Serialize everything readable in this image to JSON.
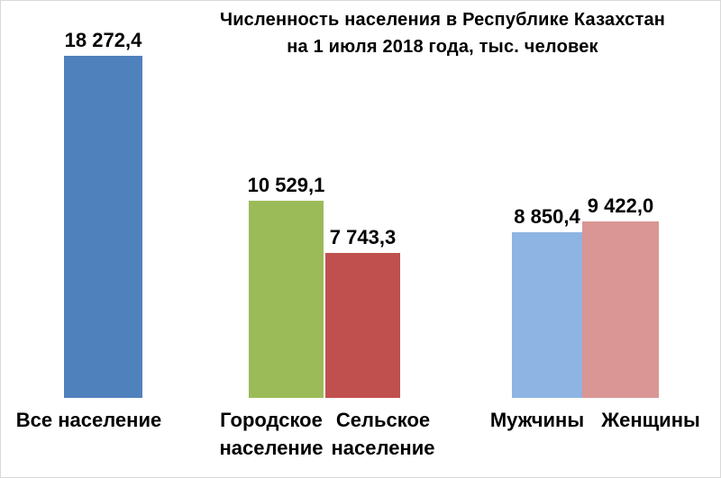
{
  "title": {
    "line1": "Численность населения  в Республике  Казахстан",
    "line2": "на 1 июля 2018 года, тыс. человек"
  },
  "chart_data": {
    "type": "bar",
    "title": "Численность населения в Республике Казахстан на 1 июля 2018 года, тыс. человек",
    "unit": "тыс. человек",
    "xlabel": "",
    "ylabel": "",
    "ylim": [
      0,
      18272.4
    ],
    "grid": false,
    "legend": false,
    "value_labels_shown": true,
    "categories": [
      "Все население",
      "Городское население",
      "Сельское население",
      "Мужчины",
      "Женщины"
    ],
    "values": [
      18272.4,
      10529.1,
      7743.3,
      8850.4,
      9422.0
    ],
    "bars": [
      {
        "category": "Все население",
        "value": 18272.4,
        "value_label": "18 272,4",
        "color": "#4F81BD"
      },
      {
        "category": "Городское население",
        "value": 10529.1,
        "value_label": "10 529,1",
        "color": "#9BBB59"
      },
      {
        "category": "Сельское население",
        "value": 7743.3,
        "value_label": "7 743,3",
        "color": "#C0504D"
      },
      {
        "category": "Мужчины",
        "value": 8850.4,
        "value_label": "8 850,4",
        "color": "#8EB4E3"
      },
      {
        "category": "Женщины",
        "value": 9422.0,
        "value_label": "9 422,0",
        "color": "#D99694"
      }
    ]
  }
}
